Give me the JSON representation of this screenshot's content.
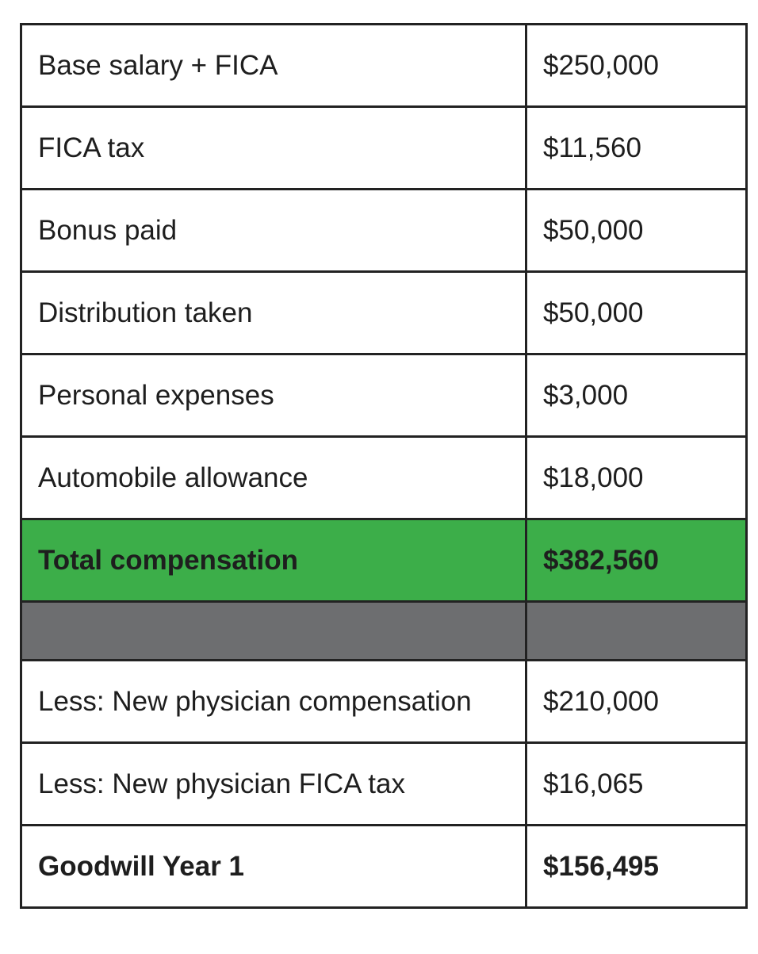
{
  "sections": [
    {
      "rows": [
        [
          "Base salary + FICA",
          "$250,000"
        ],
        [
          "FICA tax",
          "$11,560"
        ],
        [
          "Bonus paid",
          "$50,000"
        ],
        [
          "Distribution taken",
          "$50,000"
        ],
        [
          "Personal expenses",
          "$3,000"
        ],
        [
          "Automobile allowance",
          "$18,000"
        ]
      ],
      "total": [
        "Total compensation",
        "$382,560"
      ]
    },
    {
      "rows": [
        [
          "Less: New physician compensation",
          "$210,000"
        ],
        [
          "Less: New physician FICA tax",
          "$16,065"
        ]
      ],
      "total": [
        "Goodwill Year 1",
        "$156,495"
      ]
    }
  ]
}
